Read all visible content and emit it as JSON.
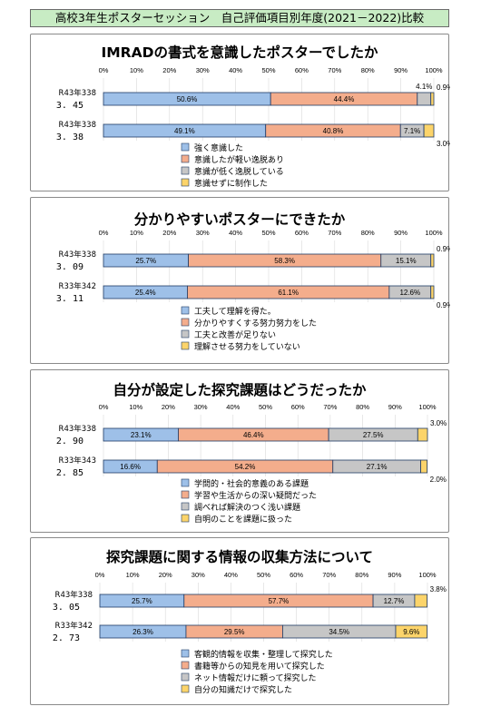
{
  "header": {
    "title": "高校3年生ポスターセッション　自己評価項目別年度(2021－2022)比較"
  },
  "colors": {
    "s1": "#9ec0e8",
    "s2": "#f4ad8c",
    "s3": "#c6c6c6",
    "s4": "#fcd46a",
    "border": "#1f3a64"
  },
  "chart_data": [
    {
      "type": "bar",
      "title": "IMRADの書式を意識したポスターでしたか",
      "xlim": [
        0,
        100
      ],
      "xticks": [
        "0%",
        "10%",
        "20%",
        "30%",
        "40%",
        "50%",
        "60%",
        "70%",
        "80%",
        "90%",
        "100%"
      ],
      "rows": [
        {
          "label": "R43年338",
          "score": "3. 45",
          "values": [
            50.6,
            44.4,
            4.1,
            0.9
          ],
          "labels": [
            "50.6%",
            "44.4%",
            "4.1%",
            "0.9%"
          ]
        },
        {
          "label": "R43年338",
          "score": "3. 38",
          "values": [
            49.1,
            40.8,
            7.1,
            3.0
          ],
          "labels": [
            "49.1%",
            "40.8%",
            "7.1%",
            "3.0%"
          ]
        }
      ],
      "series": [
        {
          "name": "強く意識した"
        },
        {
          "name": "意識したが軽い逸脱あり"
        },
        {
          "name": "意識が低く逸脱している"
        },
        {
          "name": "意識せずに制作した"
        }
      ]
    },
    {
      "type": "bar",
      "title": "分かりやすいポスターにできたか",
      "xlim": [
        0,
        100
      ],
      "xticks": [
        "0%",
        "10%",
        "20%",
        "30%",
        "40%",
        "50%",
        "60%",
        "70%",
        "80%",
        "90%",
        "100%"
      ],
      "rows": [
        {
          "label": "R43年338",
          "score": "3. 09",
          "values": [
            25.7,
            58.3,
            15.1,
            0.9
          ],
          "labels": [
            "25.7%",
            "58.3%",
            "15.1%",
            "0.9%"
          ]
        },
        {
          "label": "R33年342",
          "score": "3. 11",
          "values": [
            25.4,
            61.1,
            12.6,
            0.9
          ],
          "labels": [
            "25.4%",
            "61.1%",
            "12.6%",
            "0.9%"
          ]
        }
      ],
      "series": [
        {
          "name": "工夫して理解を得た。"
        },
        {
          "name": "分かりやすくする努力努力をした"
        },
        {
          "name": "工夫と改善が足りない"
        },
        {
          "name": "理解させる努力をしていない"
        }
      ]
    },
    {
      "type": "bar",
      "title": "自分が設定した探究課題はどうだったか",
      "xlim": [
        0,
        100
      ],
      "xticks": [
        "0%",
        "10%",
        "20%",
        "30%",
        "40%",
        "50%",
        "60%",
        "70%",
        "80%",
        "90%",
        "100%"
      ],
      "rows": [
        {
          "label": "R43年338",
          "score": "2. 90",
          "values": [
            23.1,
            46.4,
            27.5,
            3.0
          ],
          "labels": [
            "23.1%",
            "46.4%",
            "27.5%",
            "3.0%"
          ]
        },
        {
          "label": "R33年343",
          "score": "2. 85",
          "values": [
            16.6,
            54.2,
            27.1,
            2.0
          ],
          "labels": [
            "16.6%",
            "54.2%",
            "27.1%",
            "2.0%"
          ]
        }
      ],
      "series": [
        {
          "name": "学問的・社会的意義のある課題"
        },
        {
          "name": "学習や生活からの深い疑問だった"
        },
        {
          "name": "調べれば解決のつく浅い課題"
        },
        {
          "name": "自明のことを課題に扱った"
        }
      ]
    },
    {
      "type": "bar",
      "title": "探究課題に関する情報の収集方法について",
      "xlim": [
        0,
        100
      ],
      "xticks": [
        "0%",
        "10%",
        "20%",
        "30%",
        "40%",
        "50%",
        "60%",
        "70%",
        "80%",
        "90%",
        "100%"
      ],
      "rows": [
        {
          "label": "R43年338",
          "score": "3. 05",
          "values": [
            25.7,
            57.7,
            12.7,
            3.8
          ],
          "labels": [
            "25.7%",
            "57.7%",
            "12.7%",
            "3.8%"
          ]
        },
        {
          "label": "R33年342",
          "score": "2. 73",
          "values": [
            26.3,
            29.5,
            34.5,
            9.6
          ],
          "labels": [
            "26.3%",
            "29.5%",
            "34.5%",
            "9.6%"
          ]
        }
      ],
      "series": [
        {
          "name": "客観的情報を収集・整理して探究した"
        },
        {
          "name": "書籍等からの知見を用いて探究した"
        },
        {
          "name": "ネット情報だけに頼って探究した"
        },
        {
          "name": "自分の知識だけで探究した"
        }
      ]
    }
  ]
}
